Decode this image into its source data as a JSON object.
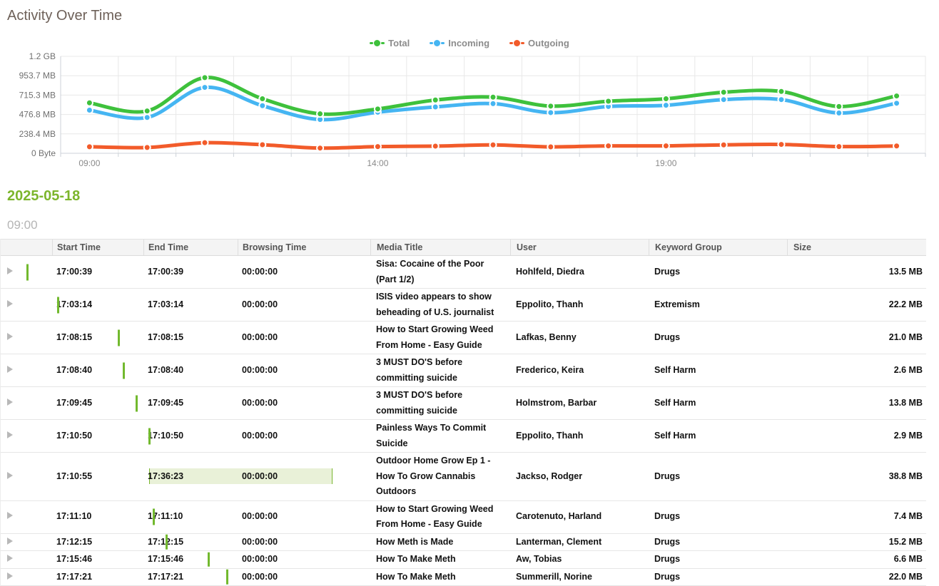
{
  "header": {
    "title": "Activity Over Time"
  },
  "chart_data": {
    "type": "line",
    "title": "Activity Over Time",
    "categories": [
      "09:00",
      "10:00",
      "11:00",
      "12:00",
      "13:00",
      "14:00",
      "15:00",
      "16:00",
      "17:00",
      "18:00",
      "19:00",
      "20:00",
      "21:00",
      "22:00",
      "23:00"
    ],
    "x_label_every": 5,
    "x_tick_labels_shown": [
      "09:00",
      "14:00",
      "19:00"
    ],
    "unit": "MB",
    "ylim_mb": [
      0,
      1192
    ],
    "y_tick_values_mb": [
      0,
      238.4,
      476.8,
      715.3,
      953.7,
      1192
    ],
    "y_tick_labels": [
      "0 Byte",
      "238.4 MB",
      "476.8 MB",
      "715.3 MB",
      "953.7 MB",
      "1.2 GB"
    ],
    "grid": true,
    "legend_position": "top-center",
    "series": [
      {
        "name": "Total",
        "color": "#3ec13c",
        "values": [
          620,
          520,
          930,
          670,
          485,
          545,
          655,
          690,
          580,
          640,
          670,
          750,
          760,
          575,
          705
        ]
      },
      {
        "name": "Incoming",
        "color": "#45b5f2",
        "values": [
          530,
          440,
          810,
          585,
          415,
          505,
          570,
          610,
          500,
          575,
          590,
          660,
          660,
          495,
          615
        ]
      },
      {
        "name": "Outgoing",
        "color": "#f25b2a",
        "values": [
          80,
          71,
          130,
          105,
          64,
          82,
          88,
          103,
          79,
          91,
          91,
          103,
          109,
          82,
          90
        ]
      }
    ]
  },
  "section": {
    "date": "2025-05-18",
    "hour": "09:00"
  },
  "table": {
    "columns": [
      "Start Time",
      "End Time",
      "Browsing Time",
      "Media Title",
      "User",
      "Keyword Group",
      "Size"
    ],
    "rows": [
      {
        "start": "17:00:39",
        "end": "17:00:39",
        "browsing": "00:00:00",
        "title": "Sisa: Cocaine of the Poor (Part 1/2)",
        "user": "Hohlfeld, Diedra",
        "group": "Drugs",
        "size": "13.5 MB"
      },
      {
        "start": "17:03:14",
        "end": "17:03:14",
        "browsing": "00:00:00",
        "title": "ISIS video appears to show beheading of U.S. journalist",
        "user": "Eppolito, Thanh",
        "group": "Extremism",
        "size": "22.2 MB"
      },
      {
        "start": "17:08:15",
        "end": "17:08:15",
        "browsing": "00:00:00",
        "title": "How to Start Growing Weed From Home - Easy Guide",
        "user": "Lafkas, Benny",
        "group": "Drugs",
        "size": "21.0 MB"
      },
      {
        "start": "17:08:40",
        "end": "17:08:40",
        "browsing": "00:00:00",
        "title": "3 MUST DO'S before committing suicide",
        "user": "Frederico, Keira",
        "group": "Self Harm",
        "size": "2.6 MB"
      },
      {
        "start": "17:09:45",
        "end": "17:09:45",
        "browsing": "00:00:00",
        "title": "3 MUST DO'S before committing suicide",
        "user": "Holmstrom, Barbar",
        "group": "Self Harm",
        "size": "13.8 MB"
      },
      {
        "start": "17:10:50",
        "end": "17:10:50",
        "browsing": "00:00:00",
        "title": "Painless Ways To Commit Suicide",
        "user": "Eppolito, Thanh",
        "group": "Self Harm",
        "size": "2.9 MB"
      },
      {
        "start": "17:10:55",
        "end": "17:36:23",
        "browsing": "00:00:00",
        "title": "Outdoor Home Grow Ep 1 - How To Grow Cannabis Outdoors",
        "user": "Jackso, Rodger",
        "group": "Drugs",
        "size": "38.8 MB"
      },
      {
        "start": "17:11:10",
        "end": "17:11:10",
        "browsing": "00:00:00",
        "title": "How to Start Growing Weed From Home - Easy Guide",
        "user": "Carotenuto, Harland",
        "group": "Drugs",
        "size": "7.4 MB"
      },
      {
        "start": "17:12:15",
        "end": "17:12:15",
        "browsing": "00:00:00",
        "title": "How Meth is Made",
        "user": "Lanterman, Clement",
        "group": "Drugs",
        "size": "15.2 MB"
      },
      {
        "start": "17:15:46",
        "end": "17:15:46",
        "browsing": "00:00:00",
        "title": "How To Make Meth",
        "user": "Aw, Tobias",
        "group": "Drugs",
        "size": "6.6 MB"
      },
      {
        "start": "17:17:21",
        "end": "17:17:21",
        "browsing": "00:00:00",
        "title": "How To Make Meth",
        "user": "Summerill, Norine",
        "group": "Drugs",
        "size": "22.0 MB"
      }
    ]
  },
  "colors": {
    "accent_green": "#7cb52c",
    "marker_green": "#72b92e",
    "band_fill": "#e9f1d8",
    "band_border": "#79b52f",
    "title_text": "#6e6159",
    "grid_line": "#e8e8e8",
    "axis_line": "#ccd2d8"
  }
}
